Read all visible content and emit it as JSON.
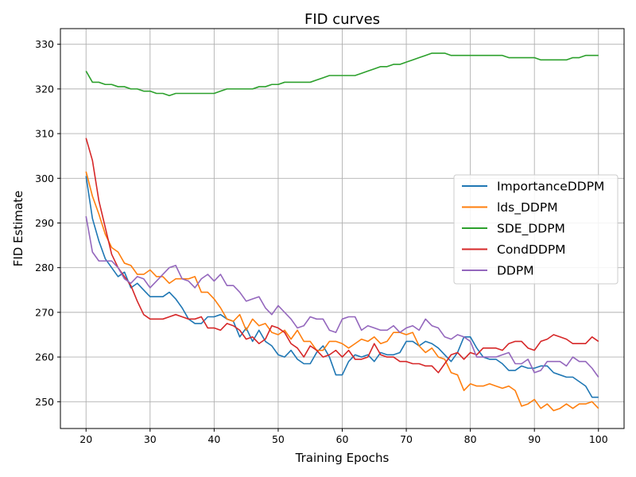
{
  "chart_data": {
    "type": "line",
    "title": "FID curves",
    "xlabel": "Training Epochs",
    "ylabel": "FID Estimate",
    "xlim": [
      16,
      104
    ],
    "ylim": [
      244,
      333.5
    ],
    "xticks": [
      20,
      30,
      40,
      50,
      60,
      70,
      80,
      90,
      100
    ],
    "yticks": [
      250,
      260,
      270,
      280,
      290,
      300,
      310,
      320,
      330
    ],
    "grid": true,
    "legend_position": "center-right",
    "x": [
      20,
      21,
      22,
      23,
      24,
      25,
      26,
      27,
      28,
      29,
      30,
      31,
      32,
      33,
      34,
      35,
      36,
      37,
      38,
      39,
      40,
      41,
      42,
      43,
      44,
      45,
      46,
      47,
      48,
      49,
      50,
      51,
      52,
      53,
      54,
      55,
      56,
      57,
      58,
      59,
      60,
      61,
      62,
      63,
      64,
      65,
      66,
      67,
      68,
      69,
      70,
      71,
      72,
      73,
      74,
      75,
      76,
      77,
      78,
      79,
      80,
      81,
      82,
      83,
      84,
      85,
      86,
      87,
      88,
      89,
      90,
      91,
      92,
      93,
      94,
      95,
      96,
      97,
      98,
      99,
      100
    ],
    "series": [
      {
        "name": "ImportanceDDPM",
        "color": "#1f77b4",
        "values": [
          300.5,
          291.0,
          286.0,
          282.0,
          280.0,
          278.0,
          279.0,
          275.5,
          276.5,
          275.0,
          273.5,
          273.5,
          273.5,
          274.5,
          273.0,
          271.0,
          268.5,
          267.5,
          267.5,
          269.0,
          269.0,
          269.5,
          268.5,
          268.0,
          264.5,
          266.5,
          263.5,
          266.0,
          263.5,
          262.5,
          260.5,
          260.0,
          261.5,
          259.5,
          258.5,
          258.5,
          261.0,
          262.5,
          260.0,
          256.0,
          256.0,
          259.0,
          260.5,
          260.0,
          260.5,
          259.0,
          261.0,
          260.5,
          260.5,
          261.0,
          263.5,
          263.5,
          262.5,
          263.5,
          263.0,
          262.0,
          260.5,
          259.0,
          261.0,
          264.5,
          264.5,
          262.0,
          260.0,
          259.5,
          259.5,
          258.5,
          257.0,
          257.0,
          258.0,
          257.5,
          257.5,
          258.0,
          258.0,
          256.5,
          256.0,
          255.5,
          255.5,
          254.5,
          253.5,
          251.0,
          251.0
        ]
      },
      {
        "name": "lds_DDPM",
        "color": "#ff7f0e",
        "values": [
          301.5,
          296.0,
          292.0,
          287.5,
          284.5,
          283.5,
          281.0,
          280.5,
          278.5,
          278.5,
          279.5,
          278.0,
          278.0,
          276.5,
          277.5,
          277.5,
          277.5,
          278.0,
          274.5,
          274.5,
          273.0,
          271.0,
          268.5,
          268.0,
          269.5,
          266.0,
          268.5,
          267.0,
          267.5,
          265.5,
          265.0,
          266.0,
          264.0,
          266.0,
          263.5,
          263.5,
          261.5,
          261.5,
          263.5,
          263.5,
          263.0,
          262.0,
          263.0,
          264.0,
          263.5,
          264.5,
          263.0,
          263.5,
          265.5,
          265.5,
          265.0,
          265.5,
          262.5,
          261.0,
          262.0,
          260.0,
          259.5,
          256.5,
          256.0,
          252.5,
          254.0,
          253.5,
          253.5,
          254.0,
          253.5,
          253.0,
          253.5,
          252.5,
          249.0,
          249.5,
          250.5,
          248.5,
          249.5,
          248.0,
          248.5,
          249.5,
          248.5,
          249.5,
          249.5,
          250.0,
          248.5
        ]
      },
      {
        "name": "SDE_DDPM",
        "color": "#2ca02c",
        "values": [
          324.0,
          321.5,
          321.5,
          321.0,
          321.0,
          320.5,
          320.5,
          320.0,
          320.0,
          319.5,
          319.5,
          319.0,
          319.0,
          318.5,
          319.0,
          319.0,
          319.0,
          319.0,
          319.0,
          319.0,
          319.0,
          319.5,
          320.0,
          320.0,
          320.0,
          320.0,
          320.0,
          320.5,
          320.5,
          321.0,
          321.0,
          321.5,
          321.5,
          321.5,
          321.5,
          321.5,
          322.0,
          322.5,
          323.0,
          323.0,
          323.0,
          323.0,
          323.0,
          323.5,
          324.0,
          324.5,
          325.0,
          325.0,
          325.5,
          325.5,
          326.0,
          326.5,
          327.0,
          327.5,
          328.0,
          328.0,
          328.0,
          327.5,
          327.5,
          327.5,
          327.5,
          327.5,
          327.5,
          327.5,
          327.5,
          327.5,
          327.0,
          327.0,
          327.0,
          327.0,
          327.0,
          326.5,
          326.5,
          326.5,
          326.5,
          326.5,
          327.0,
          327.0,
          327.5,
          327.5,
          327.5
        ]
      },
      {
        "name": "CondDDPM",
        "color": "#d62728",
        "values": [
          309.0,
          304.0,
          295.0,
          289.0,
          283.0,
          280.0,
          278.0,
          276.0,
          272.5,
          269.5,
          268.5,
          268.5,
          268.5,
          269.0,
          269.5,
          269.0,
          268.5,
          268.5,
          269.0,
          266.5,
          266.5,
          266.0,
          267.5,
          267.0,
          266.0,
          264.0,
          264.5,
          263.0,
          264.0,
          267.0,
          266.5,
          265.5,
          263.0,
          262.0,
          260.0,
          262.5,
          261.5,
          260.0,
          260.5,
          261.5,
          260.0,
          261.5,
          259.5,
          259.5,
          260.0,
          263.0,
          260.5,
          260.0,
          260.0,
          259.0,
          259.0,
          258.5,
          258.5,
          258.0,
          258.0,
          256.5,
          258.5,
          260.5,
          261.0,
          259.5,
          261.0,
          260.5,
          262.0,
          262.0,
          262.0,
          261.5,
          263.0,
          263.5,
          263.5,
          262.0,
          261.5,
          263.5,
          264.0,
          265.0,
          264.5,
          264.0,
          263.0,
          263.0,
          263.0,
          264.5,
          263.5
        ]
      },
      {
        "name": "DDPM",
        "color": "#9467bd",
        "values": [
          291.5,
          283.5,
          281.5,
          281.5,
          281.5,
          280.0,
          277.5,
          276.5,
          278.0,
          277.5,
          275.5,
          277.0,
          278.5,
          280.0,
          280.5,
          277.5,
          277.0,
          275.5,
          277.5,
          278.5,
          277.0,
          278.5,
          276.0,
          276.0,
          274.5,
          272.5,
          273.0,
          273.5,
          271.0,
          269.5,
          271.5,
          270.0,
          268.5,
          266.5,
          267.0,
          269.0,
          268.5,
          268.5,
          266.0,
          265.5,
          268.5,
          269.0,
          269.0,
          266.0,
          267.0,
          266.5,
          266.0,
          266.0,
          267.0,
          265.5,
          266.5,
          267.0,
          266.0,
          268.5,
          267.0,
          266.5,
          264.5,
          264.0,
          265.0,
          264.5,
          263.5,
          260.0,
          260.0,
          260.0,
          260.0,
          260.5,
          261.0,
          258.5,
          258.5,
          259.5,
          256.5,
          257.0,
          259.0,
          259.0,
          259.0,
          258.0,
          260.0,
          259.0,
          259.0,
          257.5,
          255.5
        ]
      }
    ]
  }
}
